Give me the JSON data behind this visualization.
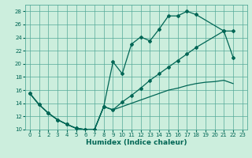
{
  "xlabel": "Humidex (Indice chaleur)",
  "bg_color": "#cceedd",
  "grid_color": "#55aa99",
  "line_color": "#006655",
  "xlim": [
    -0.5,
    23.5
  ],
  "ylim": [
    10,
    29
  ],
  "xticks": [
    0,
    1,
    2,
    3,
    4,
    5,
    6,
    7,
    8,
    9,
    10,
    11,
    12,
    13,
    14,
    15,
    16,
    17,
    18,
    19,
    20,
    21,
    22,
    23
  ],
  "yticks": [
    10,
    12,
    14,
    16,
    18,
    20,
    22,
    24,
    26,
    28
  ],
  "curve_upper_x": [
    0,
    1,
    2,
    3,
    4,
    5,
    6,
    7,
    8,
    9,
    10,
    11,
    12,
    13,
    14,
    15,
    16,
    17,
    18,
    21,
    22
  ],
  "curve_upper_y": [
    15.5,
    13.8,
    12.5,
    11.5,
    10.8,
    10.2,
    10.0,
    10.0,
    13.5,
    20.3,
    18.5,
    23.0,
    24.1,
    23.5,
    25.3,
    27.3,
    27.3,
    28.0,
    27.5,
    25.0,
    25.0
  ],
  "curve_lower_x": [
    0,
    1,
    2,
    3,
    4,
    5,
    6,
    7,
    8,
    9,
    10,
    11,
    12,
    13,
    14,
    15,
    16,
    17,
    18,
    21,
    22
  ],
  "curve_lower_y": [
    15.5,
    13.8,
    12.5,
    11.5,
    10.8,
    10.2,
    10.0,
    10.0,
    13.5,
    13.0,
    14.2,
    15.2,
    16.3,
    17.5,
    18.5,
    19.5,
    20.5,
    21.5,
    22.5,
    25.0,
    21.0
  ],
  "curve_trend_x": [
    0,
    1,
    2,
    3,
    4,
    5,
    6,
    7,
    8,
    9,
    10,
    11,
    12,
    13,
    14,
    15,
    16,
    17,
    18,
    19,
    20,
    21,
    22
  ],
  "curve_trend_y": [
    15.5,
    13.8,
    12.5,
    11.5,
    10.8,
    10.2,
    10.0,
    10.0,
    13.5,
    13.0,
    13.5,
    14.0,
    14.5,
    15.0,
    15.5,
    16.0,
    16.3,
    16.7,
    17.0,
    17.2,
    17.3,
    17.5,
    17.0
  ],
  "xlabel_fontsize": 6.5,
  "tick_fontsize": 5
}
